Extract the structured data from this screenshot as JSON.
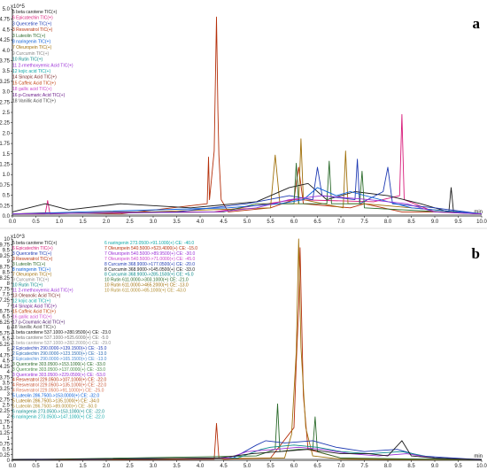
{
  "panels": [
    {
      "label": "a",
      "multiplier": "x10^5",
      "unit": "min",
      "legend": [
        {
          "text": "5 beta carotene TIC(+)",
          "color": "#1a1a1a"
        },
        {
          "text": "6 Epicatechin TIC(+)",
          "color": "#d81b7a"
        },
        {
          "text": "3 Quercetine TIC(+)",
          "color": "#1f3bb3"
        },
        {
          "text": "3 Resveratrol TIC(+)",
          "color": "#b5300b"
        },
        {
          "text": "3 Luteolin TIC(+)",
          "color": "#2a6a2a"
        },
        {
          "text": "8 naringenin TIC(+)",
          "color": "#0a5fd8"
        },
        {
          "text": "7 Oleuropein TIC(+)",
          "color": "#a0700b"
        },
        {
          "text": "9 Curcumin TIC(+)",
          "color": "#888888"
        },
        {
          "text": "10 Rutin TIC(+)",
          "color": "#0a8a8a"
        },
        {
          "text": "11 2-rmethoxyemic Acid TIC(+)",
          "color": "#9a2fd6"
        },
        {
          "text": "12 kojic acid TIC(+)",
          "color": "#10a8a8"
        },
        {
          "text": "14 Sinapic Acid TIC(+)",
          "color": "#7a2a2a"
        },
        {
          "text": "15 Caffeic Acid TIC(+)",
          "color": "#c04010"
        },
        {
          "text": "18 gallic acid TIC(+)",
          "color": "#cc44cc"
        },
        {
          "text": "16 p-Coumaric Acid TIC(+)",
          "color": "#6a1a8a"
        },
        {
          "text": "18 Vanillic Acid TIC(+)",
          "color": "#4a4a4a"
        }
      ],
      "y_ticks": [
        "0.0",
        "0.25",
        "0.5",
        "0.75",
        "1.0",
        "1.25",
        "1.5",
        "1.75",
        "2.0",
        "2.25",
        "2.5",
        "2.75",
        "3.0",
        "3.25",
        "3.5",
        "3.75",
        "4.0",
        "4.25",
        "4.5",
        "4.75",
        "5.0"
      ],
      "x_ticks": [
        "0.0",
        "0.5",
        "1.0",
        "1.5",
        "2.0",
        "2.5",
        "3.0",
        "3.5",
        "4.0",
        "4.5",
        "5.0",
        "5.5",
        "6.0",
        "6.5",
        "7.0",
        "7.5",
        "8.0",
        "8.5",
        "9.0",
        "9.5",
        "10.0"
      ]
    },
    {
      "label": "b",
      "multiplier": "x10^3",
      "unit": "min",
      "legend": [
        {
          "text": "5 beta carotene TIC(+)",
          "color": "#1a1a1a"
        },
        {
          "text": "6 Epicatechin TIC(+)",
          "color": "#d81b7a"
        },
        {
          "text": "3 Quercetine TIC(+)",
          "color": "#1f3bb3"
        },
        {
          "text": "3 Resveratrol TIC(+)",
          "color": "#b5300b"
        },
        {
          "text": "3 Luteolin TIC(+)",
          "color": "#2a6a2a"
        },
        {
          "text": "8 naringenin TIC(+)",
          "color": "#0a5fd8"
        },
        {
          "text": "7 Oleuropein TIC(+)",
          "color": "#a0700b"
        },
        {
          "text": "9 Curcumin TIC(+)",
          "color": "#888888"
        },
        {
          "text": "10 Rutin TIC(+)",
          "color": "#0a8a8a"
        },
        {
          "text": "11 2-rmethoxyemic Acid TIC(+)",
          "color": "#9a2fd6"
        },
        {
          "text": "13 Oleanolic Acid TIC(+)",
          "color": "#7a2a2a"
        },
        {
          "text": "12 kojic acid TIC(+)",
          "color": "#10a8a8"
        },
        {
          "text": "14 Sinapic Acid TIC(+)",
          "color": "#6a1a8a"
        },
        {
          "text": "15 Caffeic Acid TIC(+)",
          "color": "#c04010"
        },
        {
          "text": "16 gallic acid TIC(+)",
          "color": "#cc44cc"
        },
        {
          "text": "17 p-Coumaric Acid TIC(+)",
          "color": "#4a1a6a"
        },
        {
          "text": "18 Vanillic Acid TIC(+)",
          "color": "#4a4a4a"
        },
        {
          "text": "1 beta carotene 537.1000->280.9500(+) CE: -23.0",
          "color": "#1a1a1a"
        },
        {
          "text": "1 beta carotene 537.1000->525.6000(+) CE: -5.0",
          "color": "#777777"
        },
        {
          "text": "1 beta carotene 537.1000->282.2000(+) CE: -29.0",
          "color": "#999999"
        },
        {
          "text": "2 Epicatechin 290.0000->139.1500(+) CE: -15.0",
          "color": "#1f3bb3"
        },
        {
          "text": "2 Epicatechin 290.0000->123.1500(+) CE: -13.0",
          "color": "#2a6ab3"
        },
        {
          "text": "2 Epicatechin 290.0000->165.1500(+) CE: -13.0",
          "color": "#4a8ad3"
        },
        {
          "text": "3 Quercetine 303.0500->153.1000(+) CE: -33.0",
          "color": "#2a6a2a"
        },
        {
          "text": "3 Quercetine 303.0500->137.0000(+) CE: -33.0",
          "color": "#4a8a4a"
        },
        {
          "text": "3 Quercetine 303.0500->229.0500(+) CE: -53.0",
          "color": "#9a2fd6"
        },
        {
          "text": "4 Resveratrol 229.0500->107.1000(+) CE: -22.0",
          "color": "#b5300b"
        },
        {
          "text": "4 Resveratrol 229.0500->135.1000(+) CE: -22.0",
          "color": "#c55030"
        },
        {
          "text": "4 Resveratrol 229.0500->91.1000(+) CE: -25.0",
          "color": "#d57050"
        },
        {
          "text": "5 Luteolin 286.7500->153.0000(+) CE: -32.0",
          "color": "#0a5fd8"
        },
        {
          "text": "5 Luteolin 286.7500->135.1000(+) CE: -34.0",
          "color": "#a0700b"
        },
        {
          "text": "5 Luteolin 286.7500->89.0000(+) CE: -50.0",
          "color": "#b08a2b"
        },
        {
          "text": "6 naringenin 273.0500->153.1000(+) CE: -22.0",
          "color": "#0a8a8a"
        },
        {
          "text": "6 naringenin 273.0500->147.1000(+) CE: -22.0",
          "color": "#10a8a8"
        }
      ],
      "legend2": [
        {
          "text": "6 naringenin 273.0500->91.1000(+) CE: -40.0",
          "color": "#10a8a8"
        },
        {
          "text": "7 Oleuropein 540.5000->523.4000(+) CE: -15.0",
          "color": "#b5300b"
        },
        {
          "text": "7 Oleuropein 540.5000->89.9500(+) CE: -30.0",
          "color": "#9a2fd6"
        },
        {
          "text": "7 Oleuropein 540.5000->71.0000(+) CE: -45.0",
          "color": "#cc44cc"
        },
        {
          "text": "8 Curcumin 368.9000->177.0500(+) CE: -20.0",
          "color": "#1f3bb3"
        },
        {
          "text": "8 Curcumin 368.9000->145.0500(+) CE: -33.0",
          "color": "#1a1a1a"
        },
        {
          "text": "8 Curcumin 368.9000->285.1500(+) CE: +5.0",
          "color": "#0a8a8a"
        },
        {
          "text": "10 Rutin 611.0000->303.1000(+) CE: -21.0",
          "color": "#2a6a2a"
        },
        {
          "text": "10 Rutin 611.0000->465.2000(+) CE: -13.0",
          "color": "#a0700b"
        },
        {
          "text": "10 Rutin 611.0000->85.1000(+) CE: -43.0",
          "color": "#b08a2b"
        }
      ],
      "y_ticks": [
        "0",
        "0.25",
        "0.5",
        "0.75",
        "1",
        "1.25",
        "1.5",
        "1.75",
        "2",
        "2.25",
        "2.5",
        "2.75",
        "3",
        "3.25",
        "3.5",
        "3.75",
        "4",
        "4.25",
        "4.5",
        "4.75",
        "5",
        "5.25",
        "5.5",
        "5.75",
        "6",
        "6.25",
        "6.5",
        "6.75",
        "7",
        "7.25",
        "7.5",
        "7.75",
        "8",
        "8.25",
        "8.5",
        "8.75",
        "9",
        "9.25",
        "9.5",
        "9.75",
        "10"
      ],
      "x_ticks": [
        "0.0",
        "0.5",
        "1.0",
        "1.5",
        "2.0",
        "2.5",
        "3.0",
        "3.5",
        "4.0",
        "4.5",
        "5.0",
        "5.5",
        "6.0",
        "6.5",
        "7.0",
        "7.5",
        "8.0",
        "8.5",
        "9.0",
        "9.5",
        "10.0"
      ]
    }
  ],
  "chart_data": [
    {
      "type": "line",
      "title": "a",
      "xlabel": "min",
      "ylabel": "x10^5",
      "xlim": [
        0,
        10
      ],
      "ylim": [
        0,
        5.1
      ],
      "series": [
        {
          "name": "3 Resveratrol TIC(+)",
          "color": "#b5300b",
          "x": [
            0,
            0.7,
            2.3,
            4.15,
            4.18,
            4.2,
            4.3,
            4.35,
            4.38,
            4.4,
            4.45,
            4.6,
            5.5,
            6.0,
            6.1,
            6.2,
            7.2,
            7.5,
            8.3,
            9.3,
            10.0
          ],
          "y": [
            0.05,
            0.08,
            0.05,
            0.3,
            1.45,
            0.4,
            1.6,
            4.9,
            2.6,
            1.5,
            0.4,
            0.1,
            0.2,
            0.4,
            1.2,
            0.3,
            0.2,
            0.3,
            0.1,
            0.1,
            0.05
          ]
        },
        {
          "name": "6 Epicatechin TIC(+)",
          "color": "#d81b7a",
          "x": [
            0,
            0.2,
            0.7,
            0.75,
            0.8,
            2.3,
            4.3,
            6.0,
            7.7,
            8.25,
            8.3,
            8.35,
            9.0,
            10.0
          ],
          "y": [
            0.05,
            0.05,
            0.05,
            0.38,
            0.05,
            0.1,
            0.1,
            0.4,
            0.35,
            0.5,
            2.5,
            0.4,
            0.1,
            0.05
          ]
        },
        {
          "name": "7 Oleuropein TIC(+)",
          "color": "#a0700b",
          "x": [
            0,
            2.9,
            5.5,
            5.6,
            5.7,
            6.1,
            6.15,
            6.2,
            7.05,
            7.1,
            7.15,
            7.5,
            10.0
          ],
          "y": [
            0.05,
            0.1,
            0.2,
            1.5,
            0.3,
            0.3,
            1.9,
            0.4,
            0.2,
            1.6,
            0.3,
            0.3,
            0.05
          ]
        },
        {
          "name": "5 beta carotene TIC(+)",
          "color": "#1a1a1a",
          "x": [
            0,
            0.7,
            1.2,
            2.3,
            3.8,
            5.2,
            5.9,
            6.3,
            6.7,
            7.3,
            8.0,
            8.7,
            9.3,
            9.35,
            9.4,
            10.0
          ],
          "y": [
            0.1,
            0.3,
            0.15,
            0.3,
            0.2,
            0.35,
            0.7,
            0.8,
            0.4,
            0.6,
            0.5,
            0.3,
            0.1,
            0.7,
            0.1,
            0.05
          ]
        },
        {
          "name": "3 Quercetine TIC(+)",
          "color": "#1f3bb3",
          "x": [
            0,
            3.5,
            5.0,
            5.9,
            6.4,
            6.5,
            6.6,
            7.3,
            7.35,
            7.4,
            7.9,
            8.0,
            8.1,
            9.0,
            10.0
          ],
          "y": [
            0.05,
            0.1,
            0.3,
            0.5,
            0.4,
            1.2,
            0.5,
            0.4,
            1.4,
            0.3,
            0.6,
            1.2,
            0.3,
            0.2,
            0.05
          ]
        },
        {
          "name": "3 Luteolin TIC(+)",
          "color": "#2a6a2a",
          "x": [
            0,
            4.5,
            5.2,
            6.0,
            6.05,
            6.1,
            6.7,
            6.75,
            6.8,
            7.4,
            7.45,
            7.5,
            10.0
          ],
          "y": [
            0.05,
            0.1,
            0.3,
            0.3,
            1.3,
            0.3,
            0.3,
            1.35,
            0.3,
            0.3,
            1.1,
            0.2,
            0.05
          ]
        },
        {
          "name": "8 naringenin TIC(+)",
          "color": "#0a5fd8",
          "x": [
            0,
            4.6,
            5.7,
            6.2,
            6.5,
            6.9,
            7.2,
            8.5,
            10.0
          ],
          "y": [
            0.05,
            0.2,
            0.3,
            0.4,
            0.7,
            0.5,
            0.6,
            0.2,
            0.05
          ]
        },
        {
          "name": "11 2-rmethoxyemic Acid TIC(+)",
          "color": "#9a2fd6",
          "x": [
            0,
            4.4,
            5.2,
            5.9,
            6.6,
            7.6,
            8.4,
            9.0,
            10.0
          ],
          "y": [
            0.05,
            0.1,
            0.2,
            0.4,
            0.5,
            0.4,
            0.3,
            0.1,
            0.05
          ]
        }
      ]
    },
    {
      "type": "line",
      "title": "b",
      "xlabel": "min",
      "ylabel": "x10^3",
      "xlim": [
        0,
        10
      ],
      "ylim": [
        0,
        10.2
      ],
      "series": [
        {
          "name": "7 Oleuropein 540.5000->523.4000(+) CE: -15.0",
          "color": "#b5300b",
          "x": [
            0,
            4.3,
            4.35,
            4.4,
            4.5,
            5.5,
            6.0,
            6.05,
            6.1,
            6.13,
            6.16,
            6.2,
            6.3,
            7.0,
            8.0,
            10.0
          ],
          "y": [
            0.02,
            0.05,
            1.7,
            0.1,
            0.05,
            0.1,
            1.5,
            4.5,
            7.0,
            9.8,
            6.8,
            3.0,
            0.5,
            0.1,
            0.05,
            0.02
          ]
        },
        {
          "name": "10 Rutin 611.0000->465.2000(+) CE: -13.0",
          "color": "#a0700b",
          "x": [
            0,
            5.8,
            5.95,
            6.05,
            6.1,
            6.15,
            6.25,
            6.4,
            7.0,
            10.0
          ],
          "y": [
            0.02,
            0.1,
            1.2,
            5.0,
            10.2,
            5.2,
            1.5,
            0.2,
            0.05,
            0.02
          ]
        },
        {
          "name": "10 Rutin 611.0000->303.1000(+) CE: -21.0",
          "color": "#2a6a2a",
          "x": [
            0,
            5.2,
            5.6,
            5.65,
            5.7,
            6.1,
            6.4,
            6.45,
            6.5,
            7.0,
            10.0
          ],
          "y": [
            0.02,
            0.2,
            0.5,
            2.6,
            0.4,
            0.5,
            0.5,
            2.0,
            0.4,
            0.1,
            0.02
          ]
        },
        {
          "name": "8 Curcumin 368.9000->177.0500(+) CE: -20.0",
          "color": "#1f3bb3",
          "x": [
            0,
            4.7,
            5.2,
            5.4,
            5.8,
            6.4,
            6.9,
            7.5,
            8.2,
            8.7,
            10.0
          ],
          "y": [
            0.02,
            0.1,
            0.7,
            0.9,
            0.8,
            0.9,
            0.6,
            0.4,
            0.5,
            0.2,
            0.02
          ]
        },
        {
          "name": "6 naringenin 273.0500->153.1000(+) CE: -22.0",
          "color": "#0a8a8a",
          "x": [
            0,
            4.8,
            5.3,
            5.5,
            6.0,
            6.5,
            7.0,
            7.6,
            8.3,
            9.0,
            10.0
          ],
          "y": [
            0.02,
            0.1,
            0.5,
            0.6,
            0.7,
            0.6,
            0.4,
            0.3,
            0.4,
            0.1,
            0.02
          ]
        },
        {
          "name": "7 Oleuropein 540.5000->89.9500(+) CE: -30.0",
          "color": "#9a2fd6",
          "x": [
            0,
            4.6,
            5.0,
            5.6,
            6.1,
            6.6,
            7.2,
            7.8,
            8.4,
            9.0,
            10.0
          ],
          "y": [
            0.02,
            0.1,
            0.4,
            0.5,
            0.6,
            0.5,
            0.3,
            0.2,
            0.3,
            0.1,
            0.02
          ]
        },
        {
          "name": "8 Curcumin 368.9000->145.0500(+) CE: -33.0",
          "color": "#1a1a1a",
          "x": [
            0,
            4.4,
            5.1,
            5.7,
            6.3,
            7.0,
            7.6,
            8.0,
            8.3,
            8.5,
            9.0,
            10.0
          ],
          "y": [
            0.02,
            0.1,
            0.3,
            0.4,
            0.5,
            0.3,
            0.3,
            0.2,
            0.9,
            0.2,
            0.1,
            0.02
          ]
        }
      ]
    }
  ]
}
